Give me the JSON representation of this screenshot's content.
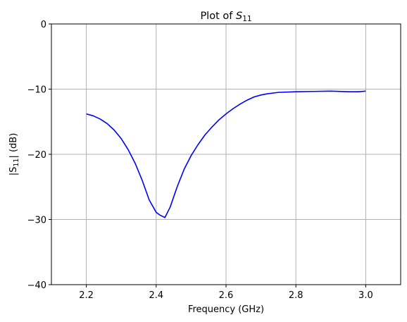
{
  "chart_data": {
    "type": "line",
    "title_prefix": "Plot of ",
    "title_symbol": "S",
    "title_subscript": "11",
    "xlabel": "Frequency (GHz)",
    "ylabel_prefix": "|S",
    "ylabel_subscript": "11",
    "ylabel_suffix": "| (dB)",
    "xlim": [
      2.1,
      3.1
    ],
    "ylim": [
      -40,
      0
    ],
    "xticks": [
      2.2,
      2.4,
      2.6,
      2.8,
      3.0
    ],
    "xtick_labels": [
      "2.2",
      "2.4",
      "2.6",
      "2.8",
      "3.0"
    ],
    "yticks": [
      -40,
      -30,
      -20,
      -10,
      0
    ],
    "ytick_labels": [
      "−40",
      "−30",
      "−20",
      "−10",
      "0"
    ],
    "grid": true,
    "series": [
      {
        "color": "#0000ff",
        "x": [
          2.2,
          2.22,
          2.24,
          2.26,
          2.28,
          2.3,
          2.32,
          2.34,
          2.36,
          2.38,
          2.4,
          2.41,
          2.425,
          2.44,
          2.46,
          2.48,
          2.5,
          2.52,
          2.54,
          2.56,
          2.58,
          2.6,
          2.62,
          2.64,
          2.66,
          2.68,
          2.7,
          2.72,
          2.75,
          2.8,
          2.85,
          2.9,
          2.95,
          2.98,
          3.0
        ],
        "y": [
          -13.8,
          -14.1,
          -14.6,
          -15.3,
          -16.3,
          -17.6,
          -19.3,
          -21.4,
          -24.0,
          -27.0,
          -28.9,
          -29.3,
          -29.7,
          -28.1,
          -25.0,
          -22.3,
          -20.2,
          -18.5,
          -17.0,
          -15.8,
          -14.7,
          -13.8,
          -13.0,
          -12.3,
          -11.7,
          -11.2,
          -10.9,
          -10.7,
          -10.5,
          -10.4,
          -10.35,
          -10.3,
          -10.4,
          -10.4,
          -10.3
        ]
      }
    ]
  }
}
